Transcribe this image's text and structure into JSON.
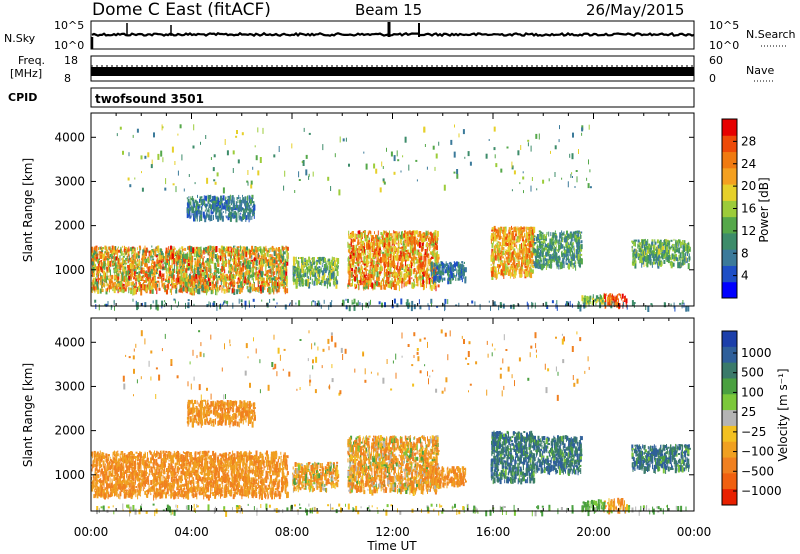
{
  "header": {
    "station": "Dome C East (fitACF)",
    "beam": "Beam 15",
    "date": "26/May/2015"
  },
  "status_panels": {
    "nsky": {
      "left_label": "N.Sky",
      "left_ticks": [
        "10^5",
        "10^0"
      ],
      "right_label": "N.Search",
      "right_ticks": [
        "10^5",
        "10^0"
      ],
      "right_legend_style": "dotted"
    },
    "freq": {
      "left_label_lines": [
        "Freq.",
        "[MHz]"
      ],
      "left_ticks": [
        "18",
        "8"
      ],
      "right_label": "Nave",
      "right_ticks": [
        "60",
        "0"
      ],
      "right_legend_style": "dotted"
    },
    "cpid": {
      "label": "CPID",
      "program": "twofsound 3501"
    }
  },
  "chart_data": [
    {
      "type": "heatmap",
      "panel": "power",
      "xlabel": "",
      "ylabel": "Slant Range [km]",
      "x_ticks": [
        "00:00",
        "04:00",
        "08:00",
        "12:00",
        "16:00",
        "20:00",
        "00:00"
      ],
      "x_range_hours": [
        0,
        24
      ],
      "y_ticks": [
        1000,
        2000,
        3000,
        4000
      ],
      "ylim": [
        180,
        4550
      ],
      "colorbar": {
        "label": "Power [dB]",
        "ticks": [
          4,
          8,
          12,
          16,
          20,
          24,
          28
        ],
        "range": [
          0,
          32
        ],
        "colors": [
          "#0000ff",
          "#1e4fc6",
          "#3b7a9a",
          "#3d8c6a",
          "#55a84a",
          "#9ccc3a",
          "#e6d02a",
          "#f4a020",
          "#f07a10",
          "#ee4a08",
          "#e60000"
        ]
      },
      "scatter_regions": [
        {
          "x": [
            0.0,
            7.8
          ],
          "y": [
            550,
            1550
          ],
          "value_range": [
            10,
            30
          ]
        },
        {
          "x": [
            8.0,
            9.8
          ],
          "y": [
            700,
            1300
          ],
          "value_range": [
            6,
            20
          ]
        },
        {
          "x": [
            10.2,
            13.8
          ],
          "y": [
            650,
            1900
          ],
          "value_range": [
            14,
            30
          ]
        },
        {
          "x": [
            13.5,
            14.9
          ],
          "y": [
            800,
            1200
          ],
          "value_range": [
            4,
            12
          ]
        },
        {
          "x": [
            15.9,
            17.6
          ],
          "y": [
            900,
            2000
          ],
          "value_range": [
            16,
            28
          ]
        },
        {
          "x": [
            17.6,
            19.5
          ],
          "y": [
            1100,
            1900
          ],
          "value_range": [
            6,
            16
          ]
        },
        {
          "x": [
            20.4,
            21.3
          ],
          "y": [
            230,
            480
          ],
          "value_range": [
            22,
            32
          ]
        },
        {
          "x": [
            19.5,
            20.4
          ],
          "y": [
            250,
            450
          ],
          "value_range": [
            10,
            20
          ]
        },
        {
          "x": [
            21.5,
            23.8
          ],
          "y": [
            1150,
            1700
          ],
          "value_range": [
            6,
            18
          ]
        },
        {
          "x": [
            3.8,
            6.5
          ],
          "y": [
            2200,
            2700
          ],
          "value_range": [
            4,
            12
          ]
        },
        {
          "x": [
            0.0,
            15.0
          ],
          "y": [
            180,
            350
          ],
          "value_range": [
            4,
            14
          ]
        },
        {
          "x": [
            15.0,
            24.0
          ],
          "y": [
            180,
            320
          ],
          "value_range": [
            4,
            12
          ]
        },
        {
          "x": [
            1.0,
            20.0
          ],
          "y": [
            2800,
            4300
          ],
          "value_range": [
            6,
            20
          ]
        }
      ]
    },
    {
      "type": "heatmap",
      "panel": "velocity",
      "xlabel": "Time UT",
      "ylabel": "Slant Range [km]",
      "x_ticks": [
        "00:00",
        "04:00",
        "08:00",
        "12:00",
        "16:00",
        "20:00",
        "00:00"
      ],
      "x_range_hours": [
        0,
        24
      ],
      "y_ticks": [
        1000,
        2000,
        3000,
        4000
      ],
      "ylim": [
        180,
        4550
      ],
      "colorbar": {
        "label": "Velocity [m s⁻¹]",
        "ticks": [
          "1000",
          "500",
          "100",
          "25",
          "−25",
          "−100",
          "−500",
          "−1000"
        ],
        "colors": [
          "#1c3faa",
          "#2f5f9a",
          "#3a7a6a",
          "#4aa040",
          "#7cc83a",
          "#b4b4b4",
          "#f3c020",
          "#f0a020",
          "#f08020",
          "#f06010",
          "#e82000"
        ]
      },
      "scatter_regions": [
        {
          "x": [
            0.0,
            7.8
          ],
          "y": [
            550,
            1550
          ],
          "value_range": [
            -500,
            -100
          ]
        },
        {
          "x": [
            8.0,
            9.8
          ],
          "y": [
            700,
            1300
          ],
          "value_range": [
            -500,
            100
          ]
        },
        {
          "x": [
            10.2,
            13.8
          ],
          "y": [
            650,
            1900
          ],
          "value_range": [
            -500,
            100
          ]
        },
        {
          "x": [
            13.5,
            14.9
          ],
          "y": [
            800,
            1200
          ],
          "value_range": [
            -500,
            -100
          ]
        },
        {
          "x": [
            15.9,
            17.6
          ],
          "y": [
            900,
            2000
          ],
          "value_range": [
            25,
            500
          ]
        },
        {
          "x": [
            17.6,
            19.5
          ],
          "y": [
            1100,
            1900
          ],
          "value_range": [
            25,
            500
          ]
        },
        {
          "x": [
            20.4,
            21.3
          ],
          "y": [
            230,
            480
          ],
          "value_range": [
            -500,
            -25
          ]
        },
        {
          "x": [
            19.5,
            20.4
          ],
          "y": [
            250,
            450
          ],
          "value_range": [
            25,
            100
          ]
        },
        {
          "x": [
            21.5,
            23.8
          ],
          "y": [
            1150,
            1700
          ],
          "value_range": [
            25,
            500
          ]
        },
        {
          "x": [
            3.8,
            6.5
          ],
          "y": [
            2200,
            2700
          ],
          "value_range": [
            -500,
            -100
          ]
        },
        {
          "x": [
            0.0,
            15.0
          ],
          "y": [
            180,
            350
          ],
          "value_range": [
            -100,
            100
          ]
        },
        {
          "x": [
            15.0,
            24.0
          ],
          "y": [
            180,
            320
          ],
          "value_range": [
            -25,
            100
          ]
        },
        {
          "x": [
            1.0,
            20.0
          ],
          "y": [
            2800,
            4300
          ],
          "value_range": [
            -500,
            100
          ]
        }
      ]
    }
  ]
}
